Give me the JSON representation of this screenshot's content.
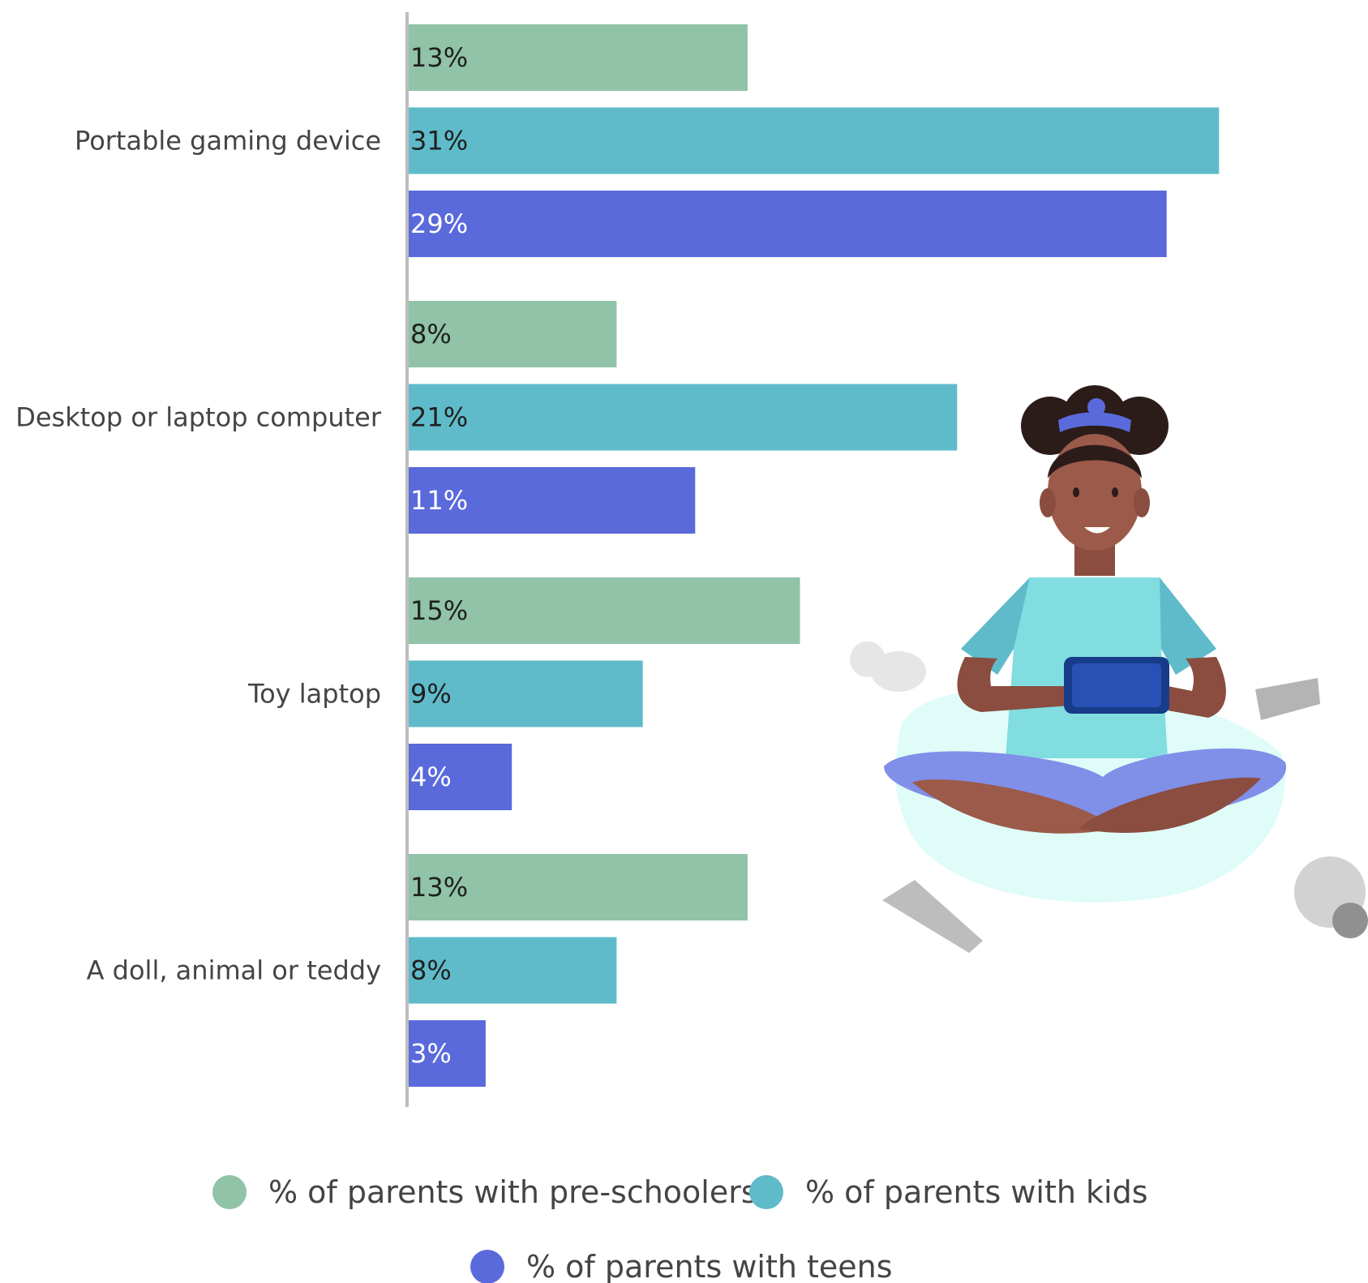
{
  "chart_data": {
    "type": "bar",
    "orientation": "horizontal",
    "categories": [
      "Portable gaming device",
      "Desktop or laptop computer",
      "Toy laptop",
      "A doll, animal or teddy"
    ],
    "series": [
      {
        "name": "% of parents with pre-schoolers",
        "color": "#90c3a7",
        "label_color": "#1f1f1f",
        "values": [
          13,
          8,
          15,
          13
        ],
        "labels": [
          "13%",
          "8%",
          "15%",
          "13%"
        ]
      },
      {
        "name": "% of parents with kids",
        "color": "#5fbbca",
        "label_color": "#1f1f1f",
        "values": [
          31,
          21,
          9,
          8
        ],
        "labels": [
          "31%",
          "21%",
          "9%",
          "8%"
        ]
      },
      {
        "name": "% of parents with teens",
        "color": "#5a6adb",
        "label_color": "#ffffff",
        "values": [
          29,
          11,
          4,
          3
        ],
        "labels": [
          "29%",
          "11%",
          "4%",
          "3%"
        ]
      }
    ],
    "xlim": [
      0,
      31
    ],
    "grid": false,
    "legend_position": "bottom",
    "illustration": "girl-with-game-controller-and-toys"
  }
}
